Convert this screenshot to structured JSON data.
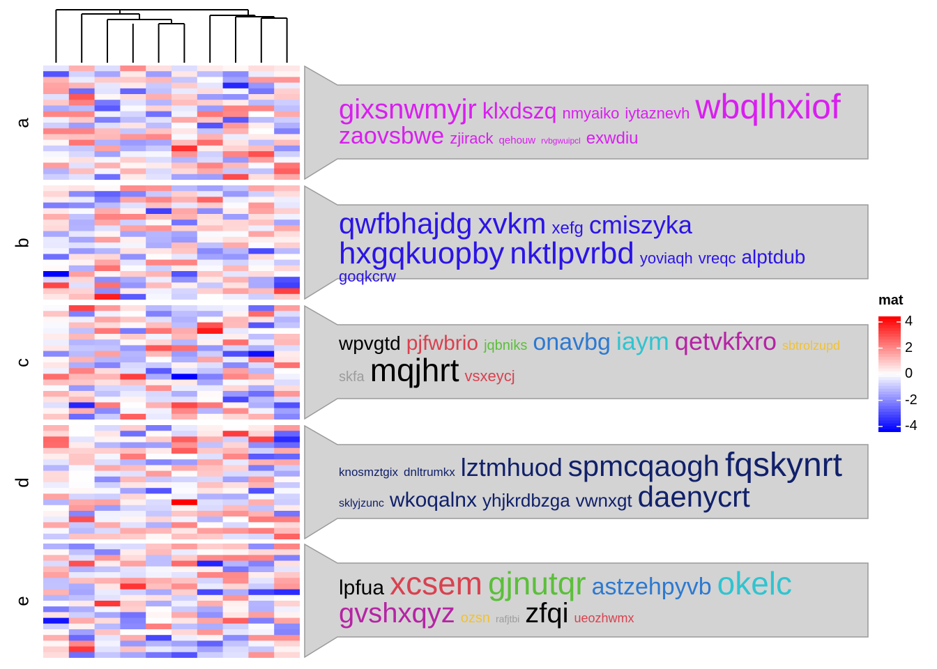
{
  "chart_data": {
    "type": "heatmap",
    "title": "",
    "legend": {
      "title": "mat",
      "ticks": [
        "4",
        "2",
        "0",
        "-2",
        "-4"
      ],
      "tick_values": [
        4,
        2,
        0,
        -2,
        -4
      ],
      "range": [
        -4,
        4
      ],
      "colors": {
        "low": "#0000ff",
        "mid": "#ffffff",
        "high": "#ff0000"
      },
      "placement": "right"
    },
    "columns": 10,
    "column_dendrogram": "shown",
    "slices": [
      {
        "label": "a",
        "rows": 20,
        "word_color": "#d91ef0",
        "words": [
          {
            "text": "gixsnwmyjr",
            "size": 40
          },
          {
            "text": "klxdszq",
            "size": 32
          },
          {
            "text": "nmyaiko",
            "size": 22
          },
          {
            "text": "iytaznevh",
            "size": 22
          },
          {
            "text": "wbqlhxiof",
            "size": 50
          },
          {
            "text": "zaovsbwe",
            "size": 34
          },
          {
            "text": "zjirack",
            "size": 22
          },
          {
            "text": "qehouw",
            "size": 15
          },
          {
            "text": "rvbgwuipcl",
            "size": 12
          },
          {
            "text": "exwdiu",
            "size": 24
          }
        ]
      },
      {
        "label": "b",
        "rows": 20,
        "word_color": "#2b14e6",
        "words": [
          {
            "text": "qwfbhajdg",
            "size": 42
          },
          {
            "text": "xvkm",
            "size": 42
          },
          {
            "text": "xefg",
            "size": 24
          },
          {
            "text": "cmiszyka",
            "size": 36
          },
          {
            "text": "hxgqkuopby",
            "size": 44
          },
          {
            "text": "nktlpvrbd",
            "size": 44
          },
          {
            "text": "yoviaqh",
            "size": 22
          },
          {
            "text": "vreqc",
            "size": 22
          },
          {
            "text": "alptdub",
            "size": 28
          },
          {
            "text": "goqkcrw",
            "size": 22
          }
        ]
      },
      {
        "label": "c",
        "rows": 20,
        "words": [
          {
            "text": "wpvgtd",
            "size": 28,
            "color": "#000000"
          },
          {
            "text": "pjfwbrio",
            "size": 30,
            "color": "#d9414f"
          },
          {
            "text": "jqbniks",
            "size": 20,
            "color": "#5bbf3a"
          },
          {
            "text": "onavbg",
            "size": 34,
            "color": "#2d79d1"
          },
          {
            "text": "iaym",
            "size": 36,
            "color": "#2fc4d0"
          },
          {
            "text": "qetvkfxro",
            "size": 36,
            "color": "#b524a4"
          },
          {
            "text": "sbtrolzupd",
            "size": 18,
            "color": "#f1c232"
          },
          {
            "text": "skfa",
            "size": 20,
            "color": "#9c9c9c"
          },
          {
            "text": "mqjhrt",
            "size": 46,
            "color": "#000000"
          },
          {
            "text": "vsxeycj",
            "size": 22,
            "color": "#d9414f"
          }
        ]
      },
      {
        "label": "d",
        "rows": 20,
        "word_color": "#10206a",
        "words": [
          {
            "text": "knosmztgix",
            "size": 17
          },
          {
            "text": "dnltrumkx",
            "size": 17
          },
          {
            "text": "lztmhuod",
            "size": 36
          },
          {
            "text": "spmcqaogh",
            "size": 42
          },
          {
            "text": "fqskynrt",
            "size": 48
          },
          {
            "text": "sklyjzunc",
            "size": 16
          },
          {
            "text": "wkoqalnx",
            "size": 30
          },
          {
            "text": "yhjkrdbzga",
            "size": 26
          },
          {
            "text": "vwnxgt",
            "size": 26
          },
          {
            "text": "daenycrt",
            "size": 42
          }
        ]
      },
      {
        "label": "e",
        "rows": 20,
        "words": [
          {
            "text": "lpfua",
            "size": 30,
            "color": "#000000"
          },
          {
            "text": "xcsem",
            "size": 46,
            "color": "#d9414f"
          },
          {
            "text": "gjnutqr",
            "size": 46,
            "color": "#5bbf3a"
          },
          {
            "text": "astzehpyvb",
            "size": 34,
            "color": "#2d79d1"
          },
          {
            "text": "okelc",
            "size": 46,
            "color": "#2fc4d0"
          },
          {
            "text": "gvshxqyz",
            "size": 40,
            "color": "#b524a4"
          },
          {
            "text": "ozsn",
            "size": 20,
            "color": "#f1c232"
          },
          {
            "text": "rafjtbi",
            "size": 14,
            "color": "#9c9c9c"
          },
          {
            "text": "zfqi",
            "size": 40,
            "color": "#000000"
          },
          {
            "text": "ueozhwmx",
            "size": 18,
            "color": "#d9414f"
          }
        ]
      }
    ],
    "callout_fill": "#d3d3d3",
    "callout_border": "#9a9a9a"
  }
}
